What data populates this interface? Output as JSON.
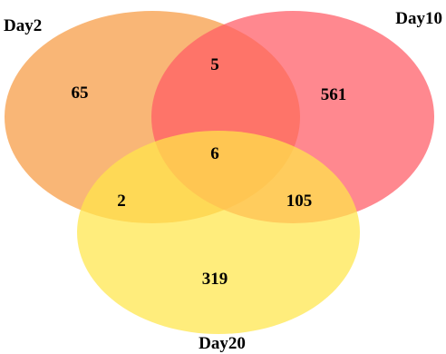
{
  "chart_data": {
    "type": "venn",
    "sets": [
      {
        "name": "Day2",
        "color": "#f7a24f"
      },
      {
        "name": "Day10",
        "color": "#ff5a64"
      },
      {
        "name": "Day20",
        "color": "#ffe64a"
      }
    ],
    "regions": [
      {
        "sets": [
          "Day2"
        ],
        "count": 65
      },
      {
        "sets": [
          "Day10"
        ],
        "count": 561
      },
      {
        "sets": [
          "Day20"
        ],
        "count": 319
      },
      {
        "sets": [
          "Day2",
          "Day10"
        ],
        "count": 5
      },
      {
        "sets": [
          "Day2",
          "Day20"
        ],
        "count": 2
      },
      {
        "sets": [
          "Day10",
          "Day20"
        ],
        "count": 105
      },
      {
        "sets": [
          "Day2",
          "Day10",
          "Day20"
        ],
        "count": 6
      }
    ]
  }
}
